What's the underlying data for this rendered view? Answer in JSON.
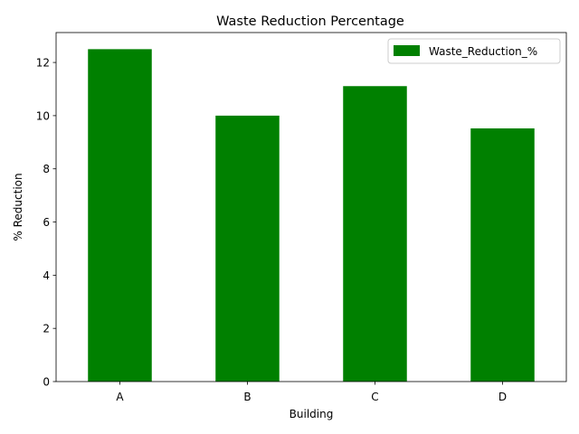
{
  "chart_data": {
    "type": "bar",
    "title": "Waste Reduction Percentage",
    "xlabel": "Building",
    "ylabel": "% Reduction",
    "categories": [
      "A",
      "B",
      "C",
      "D"
    ],
    "series": [
      {
        "name": "Waste_Reduction_%",
        "values": [
          12.5,
          10.0,
          11.11,
          9.52
        ],
        "color": "#008000"
      }
    ],
    "ylim": [
      0,
      13.125
    ],
    "yticks": [
      0,
      2,
      4,
      6,
      8,
      10,
      12
    ],
    "grid": false,
    "legend": {
      "position": "top-right"
    }
  }
}
